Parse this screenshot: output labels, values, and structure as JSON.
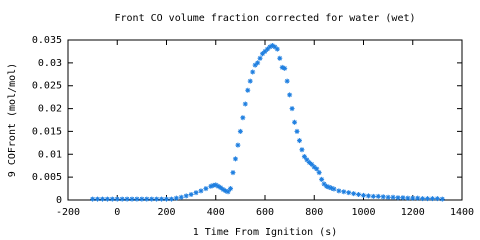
{
  "chart_data": {
    "type": "scatter",
    "title": "Front CO volume fraction corrected for water (wet)",
    "x_label": "1 Time From Ignition (s)",
    "y_label": "9 COFront (mol/mol)",
    "color": "#1f7fe0",
    "xlim": [
      -200,
      1400
    ],
    "xticks": [
      -200,
      0,
      200,
      400,
      600,
      800,
      1000,
      1200,
      1400
    ],
    "ylim": [
      0,
      0.035
    ],
    "yticks": [
      0,
      0.005,
      0.01,
      0.015,
      0.02,
      0.025,
      0.03,
      0.035
    ],
    "grid": false,
    "x": [
      -100,
      -80,
      -60,
      -40,
      -20,
      0,
      20,
      40,
      60,
      80,
      100,
      120,
      140,
      160,
      180,
      200,
      220,
      240,
      260,
      280,
      300,
      320,
      340,
      360,
      380,
      390,
      400,
      410,
      420,
      430,
      440,
      450,
      460,
      470,
      480,
      490,
      500,
      510,
      520,
      530,
      540,
      550,
      560,
      570,
      580,
      590,
      600,
      610,
      620,
      630,
      640,
      650,
      660,
      670,
      680,
      690,
      700,
      710,
      720,
      730,
      740,
      750,
      760,
      770,
      780,
      790,
      800,
      810,
      820,
      830,
      840,
      850,
      860,
      870,
      880,
      900,
      920,
      940,
      960,
      980,
      1000,
      1020,
      1040,
      1060,
      1080,
      1100,
      1120,
      1140,
      1160,
      1180,
      1200,
      1220,
      1240,
      1260,
      1280,
      1300,
      1320
    ],
    "values": [
      0.0002,
      0.0002,
      0.0002,
      0.0002,
      0.0002,
      0.0002,
      0.0002,
      0.0002,
      0.0002,
      0.0002,
      0.0002,
      0.0002,
      0.0002,
      0.0002,
      0.0002,
      0.0002,
      0.0002,
      0.0004,
      0.0006,
      0.0009,
      0.0012,
      0.0016,
      0.002,
      0.0025,
      0.003,
      0.0032,
      0.0033,
      0.003,
      0.0027,
      0.0023,
      0.002,
      0.0018,
      0.0025,
      0.006,
      0.009,
      0.012,
      0.015,
      0.018,
      0.021,
      0.024,
      0.026,
      0.028,
      0.0295,
      0.03,
      0.031,
      0.032,
      0.0325,
      0.033,
      0.0335,
      0.0338,
      0.0335,
      0.033,
      0.031,
      0.029,
      0.0288,
      0.026,
      0.023,
      0.02,
      0.017,
      0.015,
      0.013,
      0.011,
      0.0095,
      0.0088,
      0.0082,
      0.0078,
      0.0072,
      0.0068,
      0.006,
      0.0045,
      0.0035,
      0.003,
      0.0028,
      0.0026,
      0.0024,
      0.002,
      0.0018,
      0.0016,
      0.0014,
      0.0012,
      0.001,
      0.0009,
      0.0008,
      0.0008,
      0.0007,
      0.0006,
      0.0006,
      0.0005,
      0.0005,
      0.0004,
      0.0004,
      0.0004,
      0.0003,
      0.0003,
      0.0003,
      0.0003,
      0.0002
    ]
  }
}
